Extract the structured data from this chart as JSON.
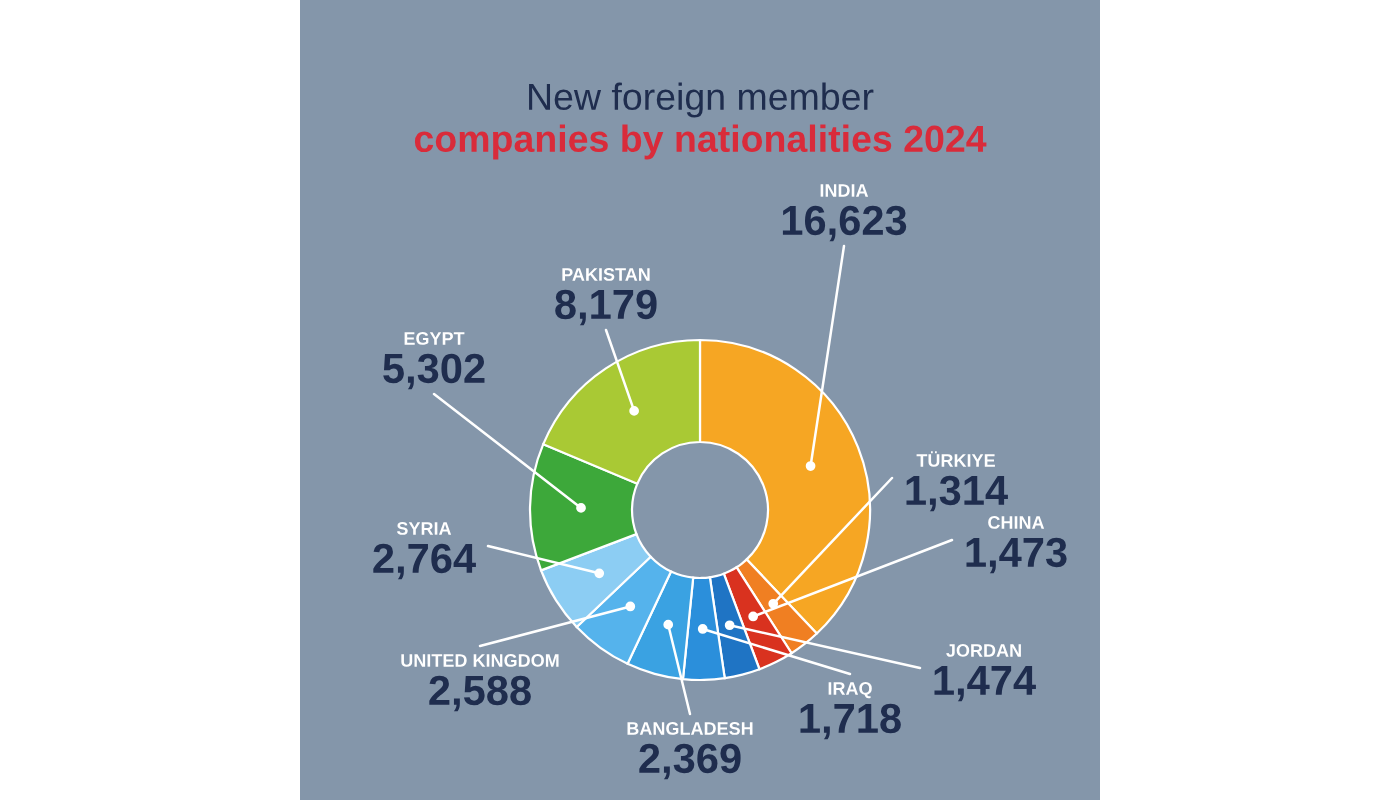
{
  "chart_data": {
    "type": "donut",
    "title": "New foreign member",
    "subtitle": "companies by nationalities 2024",
    "categories": [
      "INDIA",
      "TÜRKIYE",
      "CHINA",
      "JORDAN",
      "IRAQ",
      "BANGLADESH",
      "UNITED KINGDOM",
      "SYRIA",
      "EGYPT",
      "PAKISTAN"
    ],
    "values": [
      16623,
      1314,
      1473,
      1474,
      1718,
      2369,
      2588,
      2764,
      5302,
      8179
    ],
    "value_labels": [
      "16,623",
      "1,314",
      "1,473",
      "1,474",
      "1,718",
      "2,369",
      "2,588",
      "2,764",
      "5,302",
      "8,179"
    ],
    "colors": [
      "#f6a623",
      "#f07f22",
      "#d9321f",
      "#1f74c4",
      "#2b8fdb",
      "#3aa2e2",
      "#55b3ec",
      "#8ccdf3",
      "#3da83a",
      "#a9c934"
    ]
  }
}
